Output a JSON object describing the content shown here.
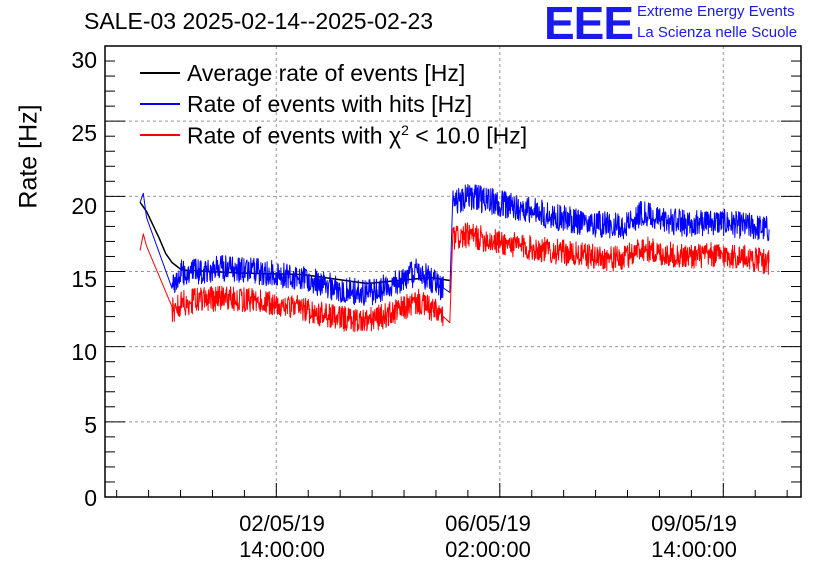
{
  "chart_data": {
    "type": "line",
    "title": "SALE-03 2025-02-14--2025-02-23",
    "ylabel": "Rate [Hz]",
    "xlabel": "",
    "ylim": [
      0,
      30
    ],
    "y_ticks": [
      "0",
      "5",
      "10",
      "15",
      "20",
      "25",
      "30"
    ],
    "x_ticks": [
      {
        "date": "02/05/19",
        "time": "14:00:00",
        "day": 2.583
      },
      {
        "date": "06/05/19",
        "time": "02:00:00",
        "day": 6.083
      },
      {
        "date": "09/05/19",
        "time": "14:00:00",
        "day": 9.583
      }
    ],
    "xlim_days": [
      -0.1,
      10.8
    ],
    "grid": true,
    "legend_position": "top-left",
    "series": [
      {
        "name": "Average rate of events [Hz]",
        "color": "#000000",
        "points": [
          [
            0.45,
            19.6
          ],
          [
            0.55,
            19.0
          ],
          [
            0.75,
            17.2
          ],
          [
            0.85,
            16.2
          ],
          [
            0.95,
            15.6
          ],
          [
            1.1,
            15.1
          ],
          [
            2.0,
            14.9
          ],
          [
            3.0,
            14.8
          ],
          [
            4.0,
            14.2
          ],
          [
            5.0,
            14.6
          ],
          [
            5.3,
            14.4
          ]
        ]
      },
      {
        "name": "Rate of events with hits [Hz]",
        "color": "#0000ff",
        "noise": 0.9,
        "points": [
          [
            0.45,
            19.6
          ],
          [
            0.5,
            20.2
          ],
          [
            0.55,
            18.6
          ],
          [
            0.95,
            14.1
          ],
          [
            1.1,
            14.9
          ],
          [
            1.8,
            15.2
          ],
          [
            2.3,
            15.0
          ],
          [
            3.0,
            14.6
          ],
          [
            3.5,
            13.9
          ],
          [
            4.0,
            13.5
          ],
          [
            4.4,
            14.1
          ],
          [
            4.8,
            15.0
          ],
          [
            5.2,
            13.9
          ],
          [
            5.3,
            13.6
          ],
          [
            5.35,
            19.7
          ],
          [
            5.6,
            20.0
          ],
          [
            6.0,
            19.6
          ],
          [
            6.5,
            19.1
          ],
          [
            7.0,
            18.6
          ],
          [
            7.5,
            18.2
          ],
          [
            8.0,
            18.0
          ],
          [
            8.3,
            18.9
          ],
          [
            8.6,
            18.4
          ],
          [
            9.0,
            18.2
          ],
          [
            9.5,
            18.3
          ],
          [
            10.0,
            18.0
          ],
          [
            10.3,
            17.8
          ]
        ]
      },
      {
        "name": "Rate of events with χ² < 10.0 [Hz]",
        "color": "#ff0000",
        "noise": 0.85,
        "points": [
          [
            0.45,
            16.4
          ],
          [
            0.5,
            17.5
          ],
          [
            0.55,
            16.7
          ],
          [
            0.95,
            12.4
          ],
          [
            1.1,
            12.9
          ],
          [
            1.8,
            13.3
          ],
          [
            2.3,
            13.0
          ],
          [
            3.0,
            12.5
          ],
          [
            3.5,
            11.9
          ],
          [
            4.0,
            11.7
          ],
          [
            4.4,
            12.2
          ],
          [
            4.8,
            13.0
          ],
          [
            5.2,
            12.0
          ],
          [
            5.3,
            11.6
          ],
          [
            5.35,
            17.2
          ],
          [
            5.6,
            17.4
          ],
          [
            6.0,
            17.0
          ],
          [
            6.5,
            16.6
          ],
          [
            7.0,
            16.3
          ],
          [
            7.5,
            16.0
          ],
          [
            8.0,
            15.8
          ],
          [
            8.3,
            16.6
          ],
          [
            8.6,
            16.2
          ],
          [
            9.0,
            16.0
          ],
          [
            9.5,
            16.1
          ],
          [
            10.0,
            15.9
          ],
          [
            10.3,
            15.6
          ]
        ]
      }
    ]
  },
  "legend": {
    "entries": [
      {
        "text": "Average rate of events [Hz]",
        "color": "#000000"
      },
      {
        "text": "Rate of events with hits [Hz]",
        "color": "#0000ff"
      },
      {
        "text_prefix": "Rate of events with ",
        "chi": "χ",
        "sup": "2",
        "text_suffix": " < 10.0 [Hz]",
        "color": "#ff0000"
      }
    ]
  },
  "logo": {
    "mark": "EEE",
    "line1": "Extreme Energy Events",
    "line2": "La Scienza nelle Scuole",
    "color": "#1a1aee"
  }
}
